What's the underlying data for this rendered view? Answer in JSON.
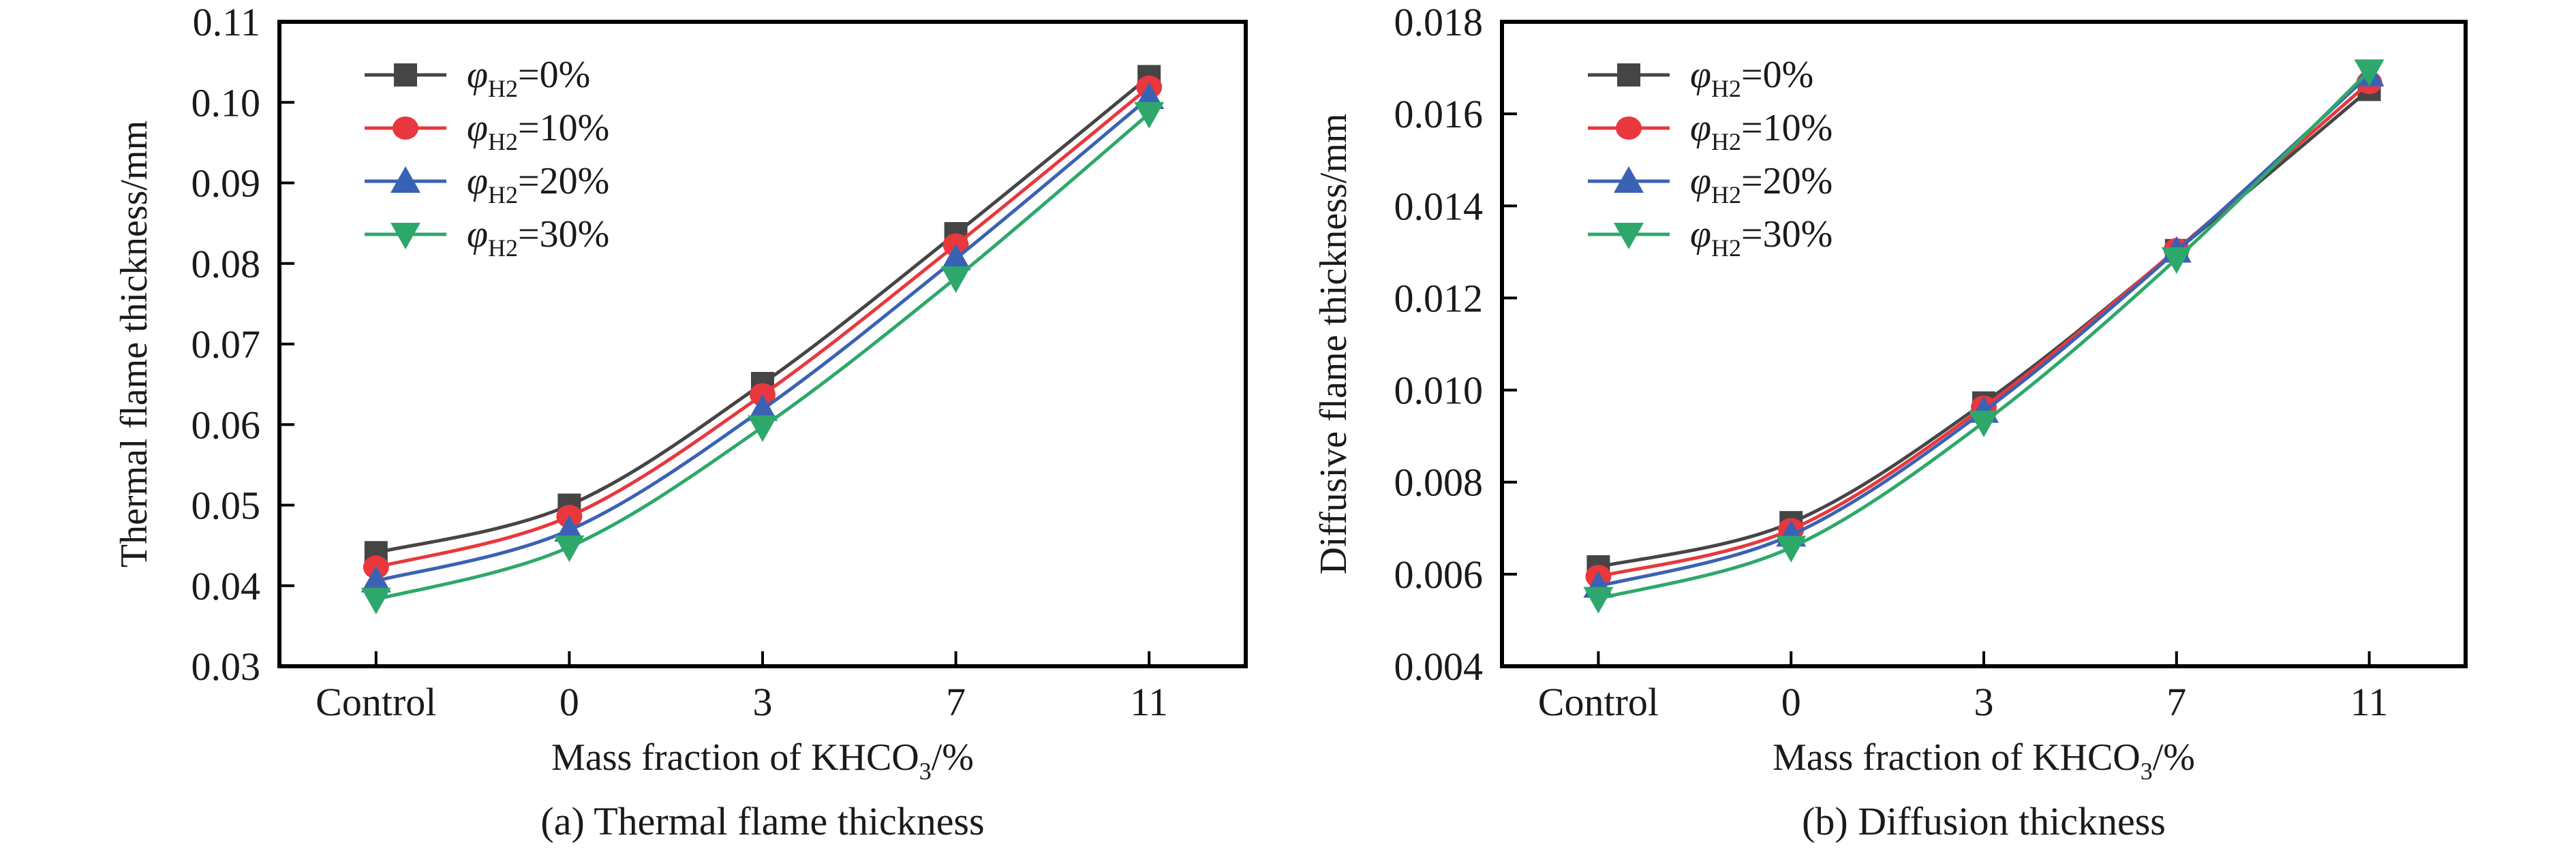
{
  "chart_data": [
    {
      "type": "line",
      "panel": "a",
      "title": "(a) Thermal flame thickness",
      "xlabel": "Mass fraction of KHCO3/%",
      "xlabel_parts": {
        "main": "Mass fraction of KHCO",
        "sub": "3",
        "tail": "/%"
      },
      "ylabel": "Thermal flame thickness/mm",
      "categories": [
        "Control",
        "0",
        "3",
        "7",
        "11"
      ],
      "ylim": [
        0.03,
        0.11
      ],
      "yticks": [
        0.03,
        0.04,
        0.05,
        0.06,
        0.07,
        0.08,
        0.09,
        0.1,
        0.11
      ],
      "ytick_labels": [
        "0.03",
        "0.04",
        "0.05",
        "0.06",
        "0.07",
        "0.08",
        "0.09",
        "0.10",
        "0.11"
      ],
      "grid": false,
      "legend_position": "top-left",
      "series": [
        {
          "name": "φH2=0%",
          "label_prefix": "φ",
          "label_sub": "H2",
          "label_tail": "=0%",
          "marker": "square",
          "color": "#454545",
          "values": [
            0.0441,
            0.05,
            0.0651,
            0.0837,
            0.1032
          ]
        },
        {
          "name": "φH2=10%",
          "label_prefix": "φ",
          "label_sub": "H2",
          "label_tail": "=10%",
          "marker": "circle",
          "color": "#e8383d",
          "values": [
            0.0423,
            0.0486,
            0.0637,
            0.0823,
            0.1019
          ]
        },
        {
          "name": "φH2=20%",
          "label_prefix": "φ",
          "label_sub": "H2",
          "label_tail": "=20%",
          "marker": "triangle-up",
          "color": "#3a62b4",
          "values": [
            0.0406,
            0.0469,
            0.0619,
            0.0806,
            0.1006
          ]
        },
        {
          "name": "φH2=30%",
          "label_prefix": "φ",
          "label_sub": "H2",
          "label_tail": "=30%",
          "marker": "triangle-down",
          "color": "#2ea86a",
          "values": [
            0.0383,
            0.0448,
            0.0597,
            0.0782,
            0.0986
          ]
        }
      ]
    },
    {
      "type": "line",
      "panel": "b",
      "title": "(b) Diffusion thickness",
      "xlabel": "Mass fraction of KHCO3/%",
      "xlabel_parts": {
        "main": "Mass fraction of KHCO",
        "sub": "3",
        "tail": "/%"
      },
      "ylabel": "Diffusive flame thickness/mm",
      "categories": [
        "Control",
        "0",
        "3",
        "7",
        "11"
      ],
      "ylim": [
        0.004,
        0.018
      ],
      "yticks": [
        0.004,
        0.006,
        0.008,
        0.01,
        0.012,
        0.014,
        0.016,
        0.018
      ],
      "ytick_labels": [
        "0.004",
        "0.006",
        "0.008",
        "0.010",
        "0.012",
        "0.014",
        "0.016",
        "0.018"
      ],
      "grid": false,
      "legend_position": "top-left",
      "series": [
        {
          "name": "φH2=0%",
          "label_prefix": "φ",
          "label_sub": "H2",
          "label_tail": "=0%",
          "marker": "square",
          "color": "#454545",
          "values": [
            0.00616,
            0.00712,
            0.00972,
            0.01303,
            0.01653
          ]
        },
        {
          "name": "φH2=10%",
          "label_prefix": "φ",
          "label_sub": "H2",
          "label_tail": "=10%",
          "marker": "circle",
          "color": "#e8383d",
          "values": [
            0.00595,
            0.00697,
            0.00963,
            0.01305,
            0.01668
          ]
        },
        {
          "name": "φH2=20%",
          "label_prefix": "φ",
          "label_sub": "H2",
          "label_tail": "=20%",
          "marker": "triangle-up",
          "color": "#3a62b4",
          "values": [
            0.00574,
            0.00685,
            0.00954,
            0.01302,
            0.01685
          ]
        },
        {
          "name": "φH2=30%",
          "label_prefix": "φ",
          "label_sub": "H2",
          "label_tail": "=30%",
          "marker": "triangle-down",
          "color": "#2ea86a",
          "values": [
            0.00547,
            0.00658,
            0.0093,
            0.01285,
            0.01693
          ]
        }
      ]
    }
  ]
}
